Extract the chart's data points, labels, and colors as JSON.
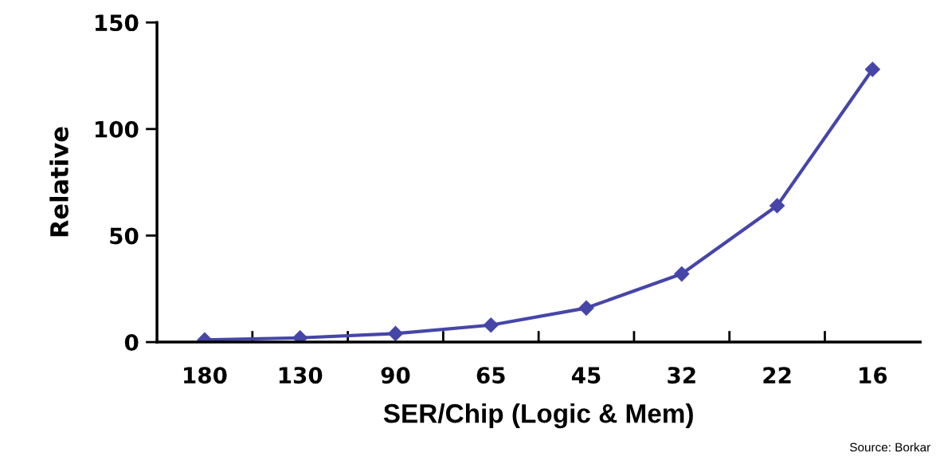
{
  "chart_data": {
    "type": "line",
    "xlabel": "SER/Chip (Logic & Mem)",
    "ylabel": "Relative",
    "categories": [
      "180",
      "130",
      "90",
      "65",
      "45",
      "32",
      "22",
      "16"
    ],
    "series": [
      {
        "color": "#4646a8",
        "values": [
          1,
          2,
          4,
          8,
          16,
          32,
          64,
          128
        ]
      }
    ],
    "ylim": [
      0,
      150
    ],
    "yticks": [
      0,
      50,
      100,
      150
    ],
    "marker": "diamond",
    "line_style": "solid",
    "grid": false,
    "legend": false,
    "annotations": [
      "Source: Borkar"
    ]
  }
}
